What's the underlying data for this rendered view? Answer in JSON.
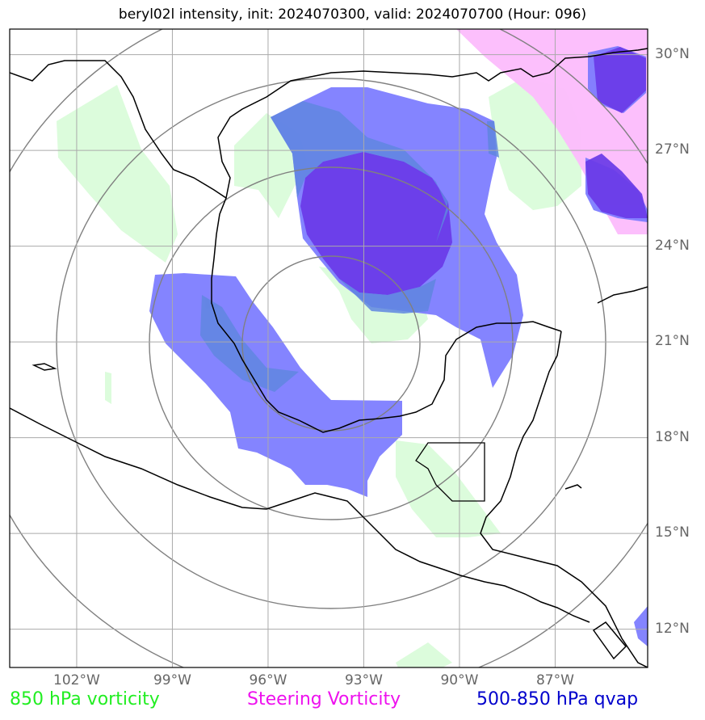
{
  "title": "beryl02l intensity, init: 2024070300, valid: 2024070700 (Hour: 096)",
  "map": {
    "lon_range": [
      -104.1,
      -84.1
    ],
    "lat_range": [
      10.8,
      30.8
    ],
    "lon_ticks": [
      {
        "value": -102,
        "label": "102°W"
      },
      {
        "value": -99,
        "label": "99°W"
      },
      {
        "value": -96,
        "label": "96°W"
      },
      {
        "value": -93,
        "label": "93°W"
      },
      {
        "value": -90,
        "label": "90°W"
      },
      {
        "value": -87,
        "label": "87°W"
      }
    ],
    "lat_ticks": [
      {
        "value": 30,
        "label": "30°N"
      },
      {
        "value": 27,
        "label": "27°N"
      },
      {
        "value": 24,
        "label": "24°N"
      },
      {
        "value": 21,
        "label": "21°N"
      },
      {
        "value": 18,
        "label": "18°N"
      },
      {
        "value": 15,
        "label": "15°N"
      },
      {
        "value": 12,
        "label": "12°N"
      }
    ],
    "grid": true,
    "range_rings": true
  },
  "legend": {
    "vorticity_850": {
      "label": "850 hPa vorticity",
      "color": "#22ee22"
    },
    "steering_vorticity": {
      "label": "Steering Vorticity",
      "color": "#ee11ee"
    },
    "qvap": {
      "label": "500-850 hPa qvap",
      "color": "#0000cc"
    }
  },
  "fill_colors": {
    "vorticity_850": "#dcfcdc",
    "steering_vorticity": "#fcbcfc",
    "qvap_light": "#7a7aff",
    "qvap_dark": "#6a3ae8"
  }
}
